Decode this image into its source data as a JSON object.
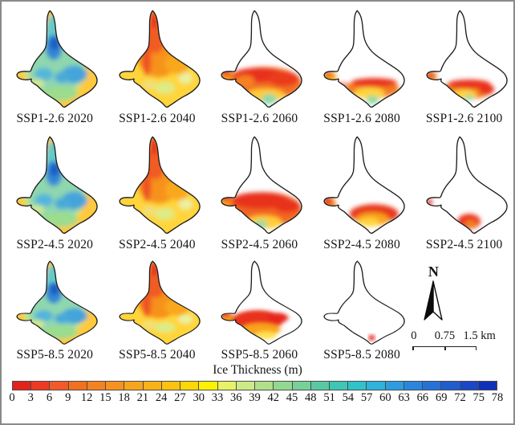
{
  "figure": {
    "rows": [
      {
        "scenario": "SSP1-2.6",
        "maps": [
          {
            "label": "SSP1-2.6 2020",
            "state": "thick2020"
          },
          {
            "label": "SSP1-2.6 2040",
            "state": "warm2040"
          },
          {
            "label": "SSP1-2.6 2060",
            "state": "band2060a"
          },
          {
            "label": "SSP1-2.6 2080",
            "state": "band2080a"
          },
          {
            "label": "SSP1-2.6 2100",
            "state": "band2100a"
          }
        ]
      },
      {
        "scenario": "SSP2-4.5",
        "maps": [
          {
            "label": "SSP2-4.5 2020",
            "state": "thick2020"
          },
          {
            "label": "SSP2-4.5 2040",
            "state": "warm2040"
          },
          {
            "label": "SSP2-4.5 2060",
            "state": "band2060b"
          },
          {
            "label": "SSP2-4.5 2080",
            "state": "band2080b"
          },
          {
            "label": "SSP2-4.5 2100",
            "state": "band2100b"
          }
        ]
      },
      {
        "scenario": "SSP5-8.5",
        "maps": [
          {
            "label": "SSP5-8.5 2020",
            "state": "thick2020"
          },
          {
            "label": "SSP5-8.5 2040",
            "state": "warm2040"
          },
          {
            "label": "SSP5-8.5 2060",
            "state": "band2060c"
          },
          {
            "label": "SSP5-8.5 2080",
            "state": "dot2080"
          }
        ]
      }
    ],
    "north": {
      "label": "N"
    },
    "scalebar": {
      "labels": [
        "0",
        "0.75",
        "1.5 km"
      ]
    },
    "colorbar": {
      "title": "Ice Thickness (m)",
      "unit": "m",
      "ticks": [
        "0",
        "3",
        "6",
        "9",
        "12",
        "15",
        "18",
        "21",
        "24",
        "27",
        "30",
        "33",
        "36",
        "39",
        "42",
        "45",
        "48",
        "51",
        "54",
        "57",
        "60",
        "63",
        "66",
        "69",
        "72",
        "75",
        "78"
      ],
      "colors": [
        "#e2231a",
        "#ee3a23",
        "#f15a29",
        "#f3701f",
        "#f58220",
        "#f69320",
        "#f8a51d",
        "#fab317",
        "#fcc30f",
        "#fed707",
        "#fff200",
        "#e8f266",
        "#cdea86",
        "#b0e08c",
        "#93d88f",
        "#77d096",
        "#58caa3",
        "#3fc6b5",
        "#30c3c9",
        "#2fb3dc",
        "#2d9de0",
        "#2a86dc",
        "#2572d6",
        "#205ed0",
        "#1a48c6",
        "#1030b8"
      ],
      "outline_color": "#1c1c1c"
    }
  }
}
